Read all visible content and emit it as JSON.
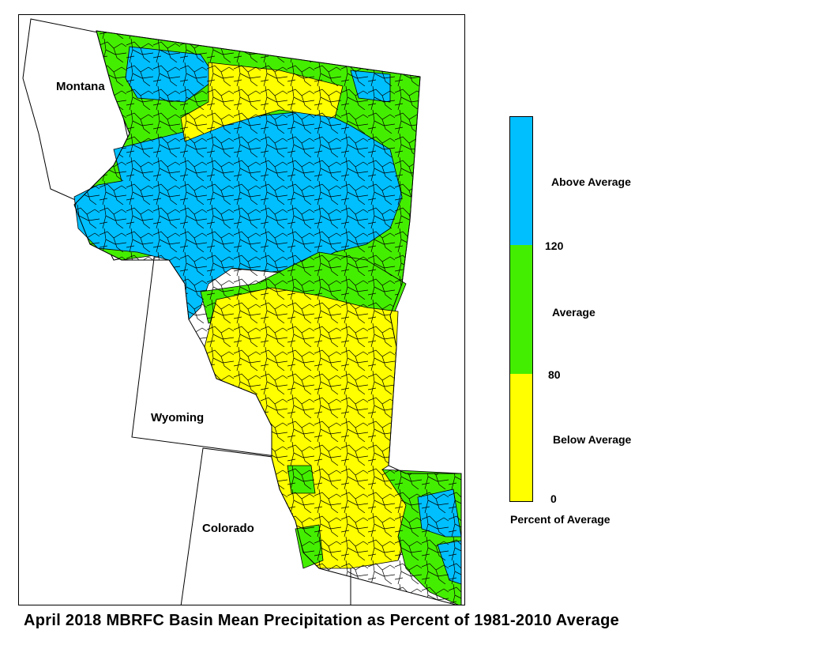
{
  "title": "April 2018 MBRFC Basin Mean Precipitation as Percent of 1981-2010 Average",
  "state_labels": {
    "montana": "Montana",
    "wyoming": "Wyoming",
    "colorado": "Colorado"
  },
  "legend": {
    "title": "Percent of Average",
    "categories": [
      {
        "label": "Above Average",
        "min": 120,
        "color": "#00bfff"
      },
      {
        "label": "Average",
        "min": 80,
        "max": 120,
        "color": "#44ee00"
      },
      {
        "label": "Below Average",
        "min": 0,
        "max": 80,
        "color": "#ffff00"
      }
    ],
    "breaks": [
      "120",
      "80",
      "0"
    ]
  },
  "colors": {
    "above": "#00bfff",
    "average": "#44ee00",
    "below": "#ffff00",
    "border": "#000000",
    "background": "#ffffff"
  }
}
